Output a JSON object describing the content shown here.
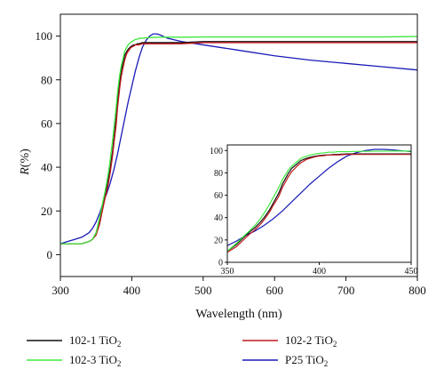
{
  "chart_data": {
    "type": "line",
    "xlabel": "Wavelength (nm)",
    "ylabel": "R(%)",
    "xlim": [
      300,
      800
    ],
    "ylim": [
      -10,
      110
    ],
    "xticks": [
      300,
      400,
      500,
      600,
      700,
      800
    ],
    "yticks": [
      0,
      20,
      40,
      60,
      80,
      100
    ],
    "series": [
      {
        "name": "102-1 TiO2",
        "label_main": "102-1 TiO",
        "label_sub": "2",
        "color": "#111111",
        "x": [
          300,
          310,
          320,
          330,
          340,
          345,
          350,
          355,
          360,
          362,
          365,
          368,
          370,
          373,
          375,
          378,
          380,
          383,
          385,
          388,
          390,
          393,
          395,
          398,
          400,
          403,
          405,
          408,
          410,
          415,
          420,
          425,
          430,
          440,
          450,
          470,
          500,
          550,
          600,
          650,
          700,
          750,
          800
        ],
        "y": [
          5,
          5,
          5,
          5,
          6,
          7,
          10,
          16,
          24,
          27,
          31,
          36,
          40,
          47,
          53,
          62,
          70,
          79,
          84,
          88,
          91,
          93,
          94,
          95,
          95.5,
          96,
          96,
          96.5,
          96.5,
          97,
          97,
          97,
          97,
          97,
          97,
          97,
          97.5,
          97.5,
          97.5,
          97.5,
          97.5,
          97.5,
          97.5
        ]
      },
      {
        "name": "102-2 TiO2",
        "label_main": "102-2 TiO",
        "label_sub": "2",
        "color": "#c0181d",
        "x": [
          300,
          310,
          320,
          330,
          340,
          345,
          350,
          355,
          360,
          362,
          365,
          368,
          370,
          373,
          375,
          378,
          380,
          383,
          385,
          388,
          390,
          393,
          395,
          398,
          400,
          403,
          405,
          408,
          410,
          415,
          420,
          425,
          430,
          440,
          450,
          470,
          500,
          550,
          600,
          650,
          700,
          750,
          800
        ],
        "y": [
          5,
          5,
          5,
          5,
          6,
          7,
          9,
          14,
          22,
          25,
          29,
          34,
          38,
          45,
          51,
          59,
          67,
          76,
          81,
          86,
          89,
          92,
          93,
          94.5,
          95,
          95.5,
          96,
          96,
          96,
          96.5,
          96.5,
          96.5,
          96.5,
          96.5,
          96.5,
          96.5,
          97,
          97,
          97,
          97,
          97,
          97,
          97
        ]
      },
      {
        "name": "102-3 TiO2",
        "label_main": "102-3 TiO",
        "label_sub": "2",
        "color": "#3ee83e",
        "x": [
          300,
          310,
          320,
          330,
          340,
          345,
          350,
          355,
          360,
          362,
          365,
          368,
          370,
          373,
          375,
          378,
          380,
          383,
          385,
          388,
          390,
          393,
          395,
          398,
          400,
          403,
          405,
          408,
          410,
          415,
          420,
          425,
          430,
          440,
          450,
          470,
          500,
          550,
          600,
          650,
          700,
          750,
          800
        ],
        "y": [
          5,
          5,
          5,
          5,
          6,
          7,
          10,
          17,
          25,
          28,
          33,
          39,
          44,
          52,
          58,
          67,
          74,
          82,
          86,
          90,
          93,
          95,
          96,
          97,
          97.5,
          98,
          98.5,
          98.5,
          99,
          99,
          99.2,
          99.3,
          99.4,
          99.5,
          99.5,
          99.5,
          99.6,
          99.6,
          99.6,
          99.6,
          99.6,
          99.6,
          99.8
        ]
      },
      {
        "name": "P25 TiO2",
        "label_main": "P25 TiO",
        "label_sub": "2",
        "color": "#1a1ab8",
        "x": [
          300,
          310,
          320,
          330,
          340,
          345,
          350,
          355,
          360,
          365,
          370,
          375,
          380,
          385,
          390,
          395,
          400,
          405,
          410,
          415,
          420,
          425,
          430,
          435,
          440,
          450,
          470,
          500,
          550,
          600,
          650,
          700,
          750,
          800
        ],
        "y": [
          5,
          6,
          7,
          8,
          10,
          12,
          15,
          19,
          24,
          28,
          33,
          39,
          46,
          54,
          62,
          70,
          77,
          84,
          90,
          95,
          98,
          100,
          101,
          101,
          100.5,
          99,
          97.5,
          96,
          93.5,
          91,
          89,
          87.5,
          86,
          84.5
        ]
      }
    ],
    "inset": {
      "xlim": [
        350,
        450
      ],
      "ylim": [
        0,
        105
      ],
      "xticks": [
        350,
        400,
        450
      ],
      "yticks": [
        0,
        20,
        40,
        60,
        80,
        100
      ]
    }
  }
}
